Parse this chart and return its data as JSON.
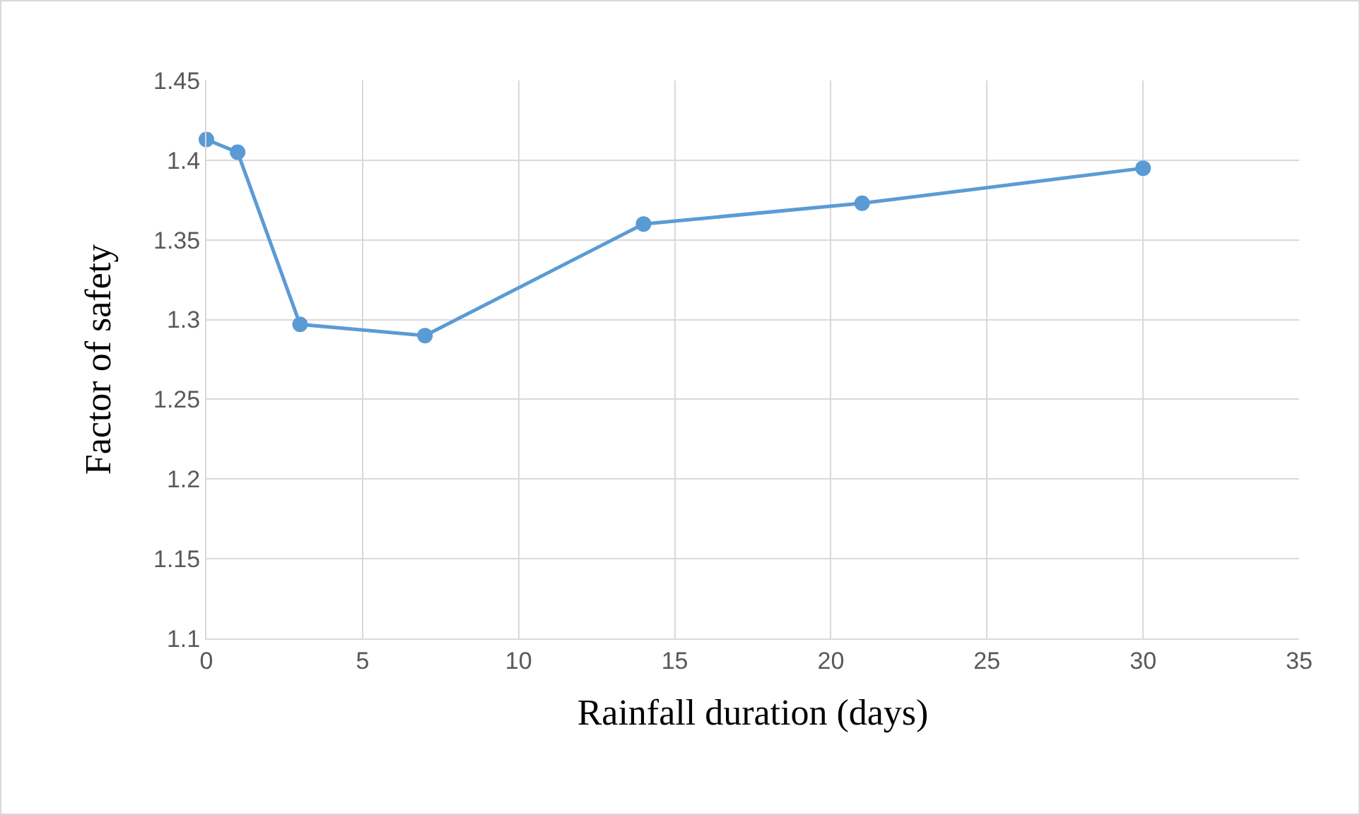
{
  "chart_data": {
    "type": "line",
    "xlabel": "Rainfall duration (days)",
    "ylabel": "Factor of safety",
    "x": [
      0,
      1,
      3,
      7,
      14,
      21,
      30
    ],
    "values": [
      1.413,
      1.405,
      1.297,
      1.29,
      1.36,
      1.373,
      1.395
    ],
    "color": "#5b9bd5",
    "marker": "circle",
    "line_style": "solid",
    "xlim": [
      0,
      35
    ],
    "xticks": [
      0,
      5,
      10,
      15,
      20,
      25,
      30,
      35
    ],
    "ylim": [
      1.1,
      1.45
    ],
    "yticks": [
      1.1,
      1.15,
      1.2,
      1.25,
      1.3,
      1.35,
      1.4,
      1.45
    ],
    "grid": true
  }
}
